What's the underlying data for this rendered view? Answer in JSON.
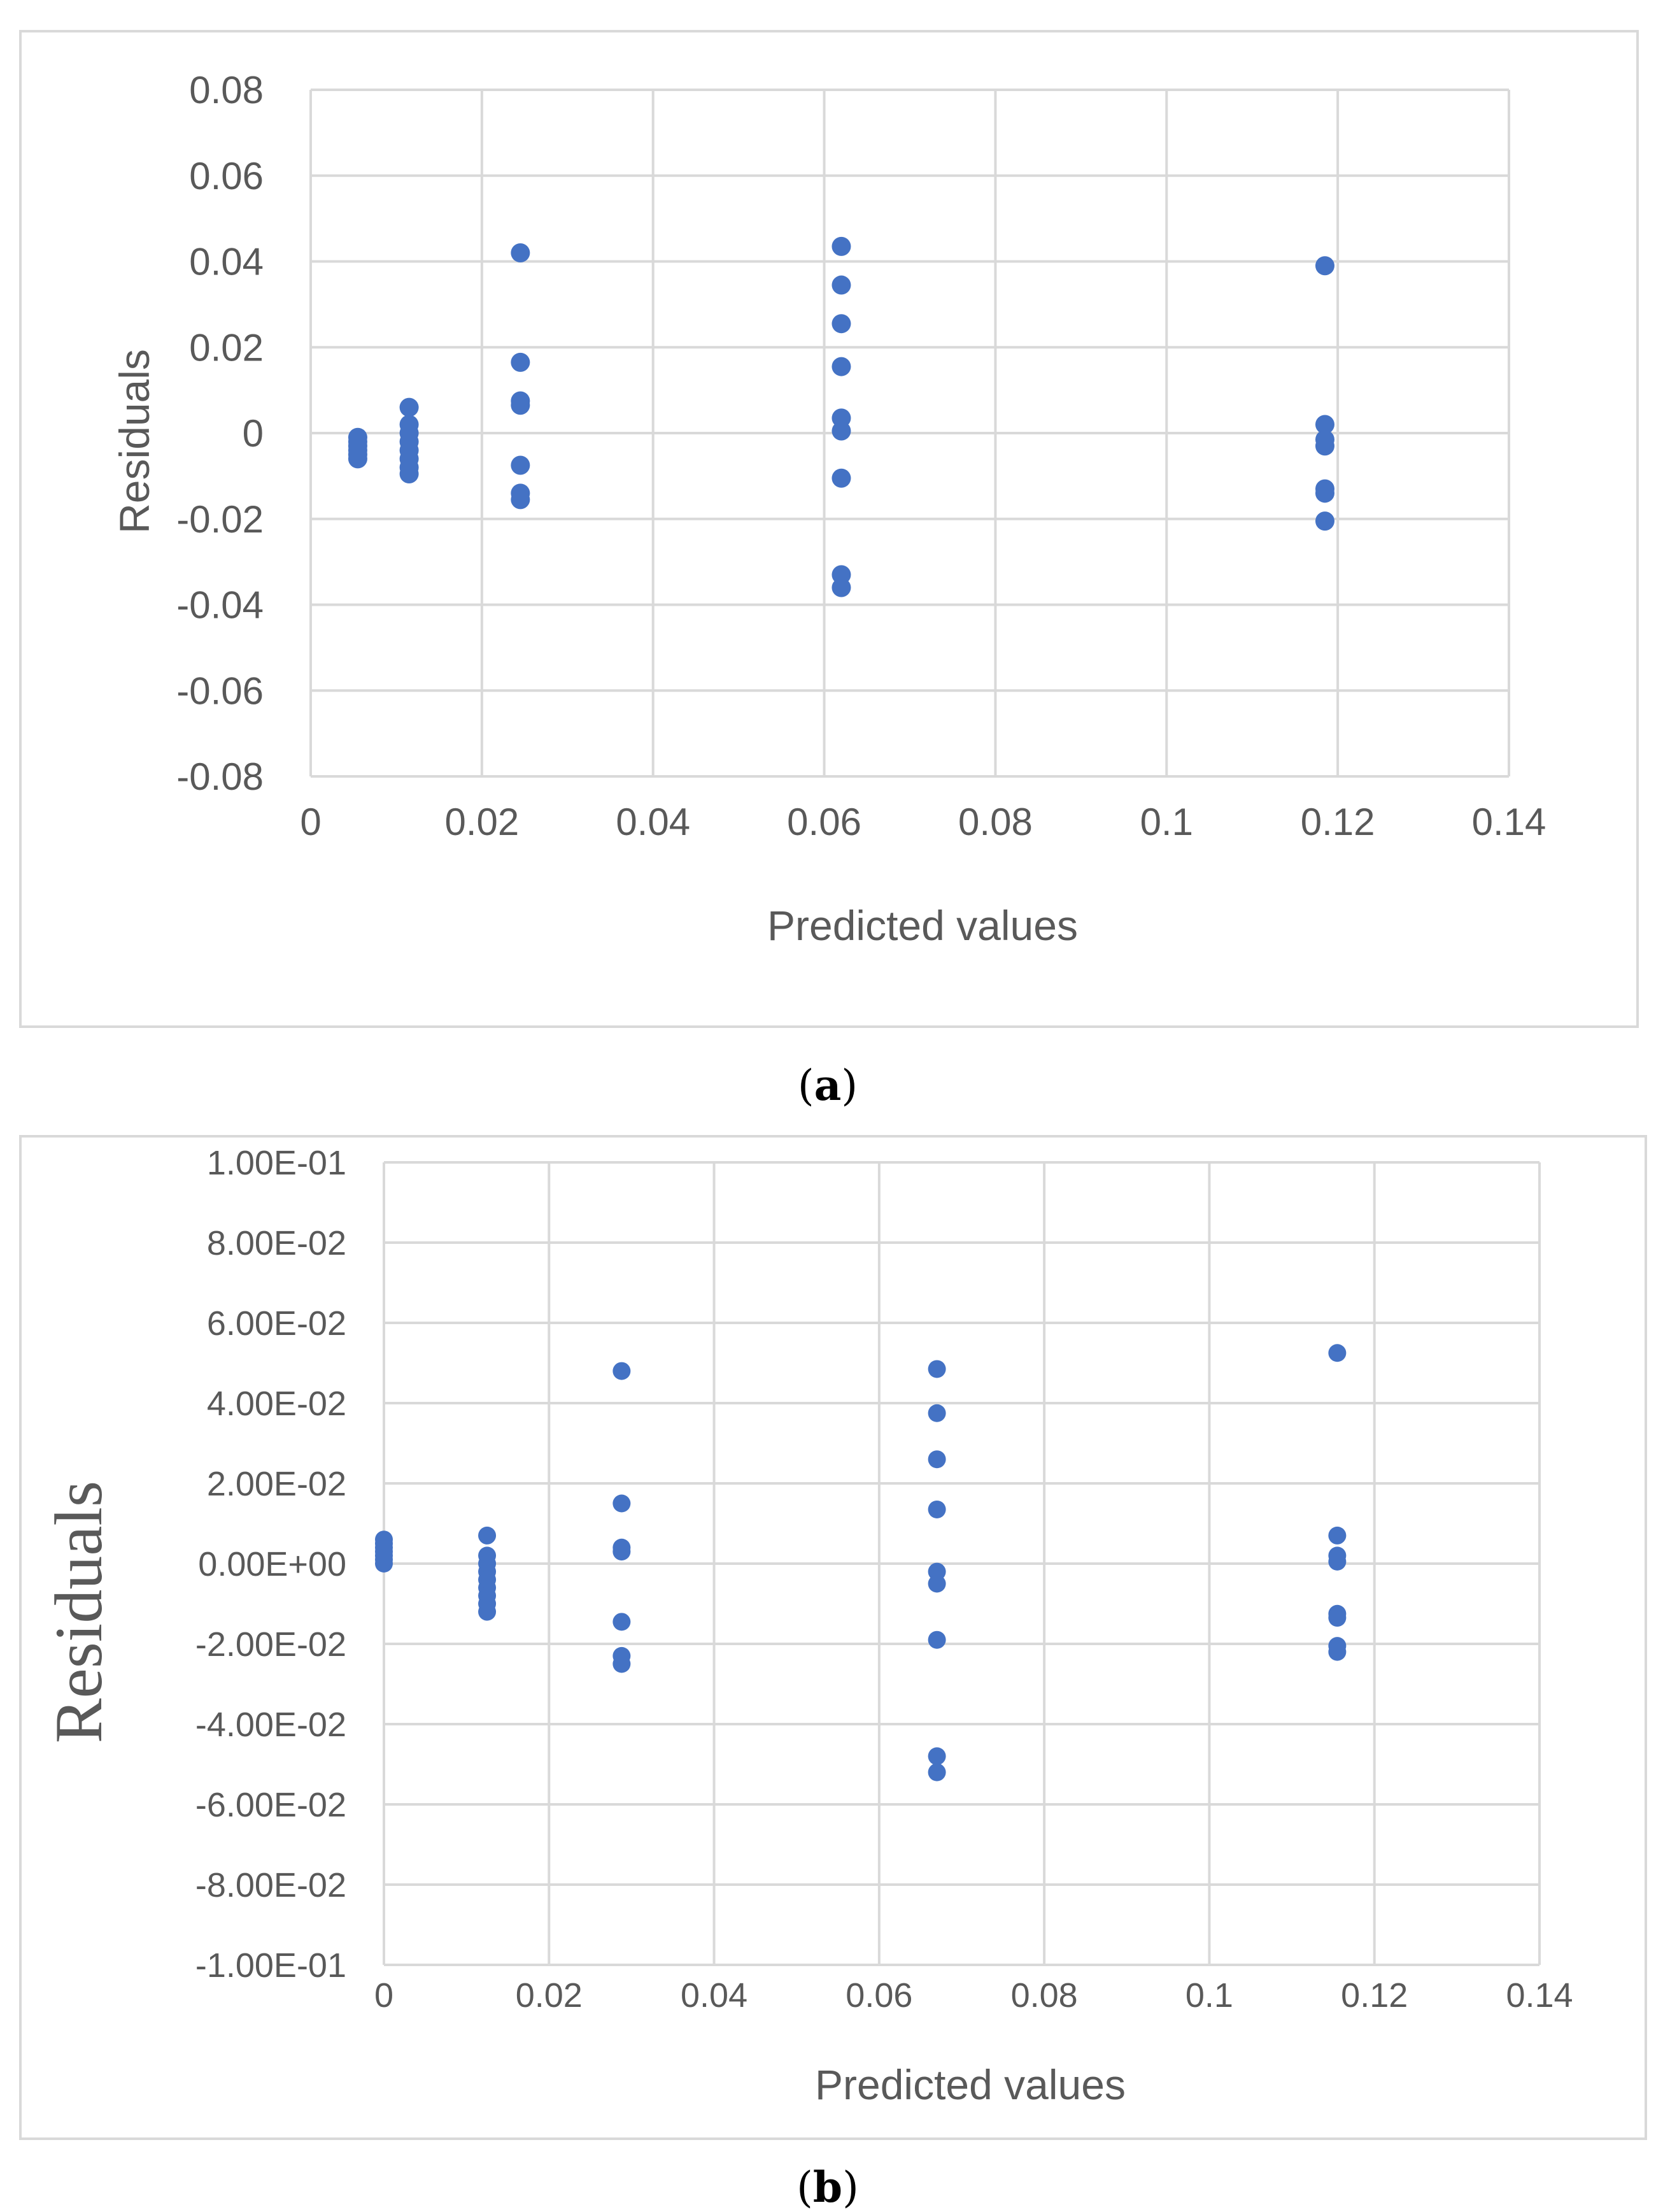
{
  "captions": {
    "a_open": "(",
    "a_letter": "a",
    "a_close": ")",
    "b_open": "(",
    "b_letter": "b",
    "b_close": ")"
  },
  "colors": {
    "marker": "#4472C4",
    "grid": "#d9d9d9",
    "text": "#595959",
    "axis": "#bfbfbf"
  },
  "chart_data": [
    {
      "id": "a",
      "type": "scatter",
      "title": "",
      "xlabel": "Predicted values",
      "ylabel": "Residuals",
      "xlim": [
        0,
        0.14
      ],
      "ylim": [
        -0.08,
        0.08
      ],
      "grid": true,
      "xticks": [
        0,
        0.02,
        0.04,
        0.06,
        0.08,
        0.1,
        0.12,
        0.14
      ],
      "yticks": [
        -0.08,
        -0.06,
        -0.04,
        -0.02,
        0,
        0.02,
        0.04,
        0.06,
        0.08
      ],
      "xtick_labels": [
        "0",
        "0.02",
        "0.04",
        "0.06",
        "0.08",
        "0.1",
        "0.12",
        "0.14"
      ],
      "ytick_labels": [
        "-0.08",
        "-0.06",
        "-0.04",
        "-0.02",
        "0",
        "0.02",
        "0.04",
        "0.06",
        "0.08"
      ],
      "series": [
        {
          "name": "Residuals",
          "points": [
            [
              0.0055,
              -0.001
            ],
            [
              0.0055,
              -0.002
            ],
            [
              0.0055,
              -0.003
            ],
            [
              0.0055,
              -0.004
            ],
            [
              0.0055,
              -0.005
            ],
            [
              0.0055,
              -0.006
            ],
            [
              0.0115,
              0.006
            ],
            [
              0.0115,
              0.002
            ],
            [
              0.0115,
              0.0
            ],
            [
              0.0115,
              -0.002
            ],
            [
              0.0115,
              -0.004
            ],
            [
              0.0115,
              -0.006
            ],
            [
              0.0115,
              -0.008
            ],
            [
              0.0115,
              -0.0095
            ],
            [
              0.0245,
              0.042
            ],
            [
              0.0245,
              0.0165
            ],
            [
              0.0245,
              0.0075
            ],
            [
              0.0245,
              0.0065
            ],
            [
              0.0245,
              -0.0075
            ],
            [
              0.0245,
              -0.014
            ],
            [
              0.0245,
              -0.0155
            ],
            [
              0.062,
              0.0435
            ],
            [
              0.062,
              0.0345
            ],
            [
              0.062,
              0.0255
            ],
            [
              0.062,
              0.0155
            ],
            [
              0.062,
              0.0035
            ],
            [
              0.062,
              0.0005
            ],
            [
              0.062,
              -0.0105
            ],
            [
              0.062,
              -0.033
            ],
            [
              0.062,
              -0.036
            ],
            [
              0.1185,
              0.039
            ],
            [
              0.1185,
              0.002
            ],
            [
              0.1185,
              -0.0015
            ],
            [
              0.1185,
              -0.003
            ],
            [
              0.1185,
              -0.013
            ],
            [
              0.1185,
              -0.014
            ],
            [
              0.1185,
              -0.0205
            ]
          ]
        }
      ]
    },
    {
      "id": "b",
      "type": "scatter",
      "title": "",
      "xlabel": "Predicted values",
      "ylabel": "Residuals",
      "xlim": [
        0,
        0.14
      ],
      "ylim": [
        -0.1,
        0.1
      ],
      "grid": true,
      "xticks": [
        0,
        0.02,
        0.04,
        0.06,
        0.08,
        0.1,
        0.12,
        0.14
      ],
      "yticks": [
        -0.1,
        -0.08,
        -0.06,
        -0.04,
        -0.02,
        0,
        0.02,
        0.04,
        0.06,
        0.08,
        0.1
      ],
      "xtick_labels": [
        "0",
        "0.02",
        "0.04",
        "0.06",
        "0.08",
        "0.1",
        "0.12",
        "0.14"
      ],
      "ytick_labels": [
        "-1.00E-01",
        "-8.00E-02",
        "-6.00E-02",
        "-4.00E-02",
        "-2.00E-02",
        "0.00E+00",
        "2.00E-02",
        "4.00E-02",
        "6.00E-02",
        "8.00E-02",
        "1.00E-01"
      ],
      "series": [
        {
          "name": "Residuals",
          "points": [
            [
              0.0,
              0.006
            ],
            [
              0.0,
              0.005
            ],
            [
              0.0,
              0.004
            ],
            [
              0.0,
              0.003
            ],
            [
              0.0,
              0.002
            ],
            [
              0.0,
              0.001
            ],
            [
              0.0,
              0.0
            ],
            [
              0.0125,
              0.007
            ],
            [
              0.0125,
              0.002
            ],
            [
              0.0125,
              0.0
            ],
            [
              0.0125,
              -0.002
            ],
            [
              0.0125,
              -0.004
            ],
            [
              0.0125,
              -0.006
            ],
            [
              0.0125,
              -0.008
            ],
            [
              0.0125,
              -0.01
            ],
            [
              0.0125,
              -0.012
            ],
            [
              0.0288,
              0.048
            ],
            [
              0.0288,
              0.015
            ],
            [
              0.0288,
              0.004
            ],
            [
              0.0288,
              0.003
            ],
            [
              0.0288,
              -0.0145
            ],
            [
              0.0288,
              -0.023
            ],
            [
              0.0288,
              -0.025
            ],
            [
              0.067,
              0.0485
            ],
            [
              0.067,
              0.0375
            ],
            [
              0.067,
              0.026
            ],
            [
              0.067,
              0.0135
            ],
            [
              0.067,
              -0.002
            ],
            [
              0.067,
              -0.005
            ],
            [
              0.067,
              -0.019
            ],
            [
              0.067,
              -0.048
            ],
            [
              0.067,
              -0.052
            ],
            [
              0.1155,
              0.0525
            ],
            [
              0.1155,
              0.007
            ],
            [
              0.1155,
              0.002
            ],
            [
              0.1155,
              0.0005
            ],
            [
              0.1155,
              -0.0125
            ],
            [
              0.1155,
              -0.0135
            ],
            [
              0.1155,
              -0.0205
            ],
            [
              0.1155,
              -0.022
            ]
          ]
        }
      ]
    }
  ]
}
